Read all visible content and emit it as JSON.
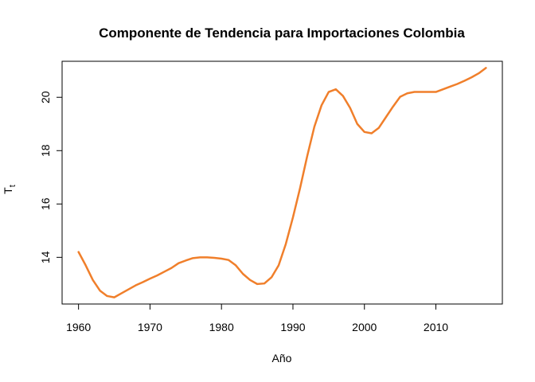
{
  "chart_data": {
    "type": "line",
    "title": "Componente de Tendencia para Importaciones Colombia",
    "xlabel": "Año",
    "ylabel_main": "T",
    "ylabel_sub": "t",
    "xlim": [
      1957.7,
      2019.3
    ],
    "ylim": [
      12.25,
      21.35
    ],
    "x_ticks": [
      1960,
      1970,
      1980,
      1990,
      2000,
      2010
    ],
    "y_ticks": [
      14,
      16,
      18,
      20
    ],
    "grid": false,
    "legend": "none",
    "series": [
      {
        "color": "#F07F2B",
        "x": [
          1960,
          1961,
          1962,
          1963,
          1964,
          1965,
          1966,
          1967,
          1968,
          1969,
          1970,
          1971,
          1972,
          1973,
          1974,
          1975,
          1976,
          1977,
          1978,
          1979,
          1980,
          1981,
          1982,
          1983,
          1984,
          1985,
          1986,
          1987,
          1988,
          1989,
          1990,
          1991,
          1992,
          1993,
          1994,
          1995,
          1996,
          1997,
          1998,
          1999,
          2000,
          2001,
          2002,
          2003,
          2004,
          2005,
          2006,
          2007,
          2008,
          2009,
          2010,
          2011,
          2012,
          2013,
          2014,
          2015,
          2016,
          2017
        ],
        "y": [
          14.2,
          13.7,
          13.15,
          12.75,
          12.55,
          12.5,
          12.65,
          12.8,
          12.95,
          13.07,
          13.2,
          13.32,
          13.46,
          13.6,
          13.78,
          13.88,
          13.97,
          14.0,
          14.0,
          13.98,
          13.95,
          13.9,
          13.7,
          13.38,
          13.15,
          13.0,
          13.02,
          13.25,
          13.7,
          14.5,
          15.5,
          16.6,
          17.8,
          18.9,
          19.7,
          20.2,
          20.3,
          20.05,
          19.6,
          19.0,
          18.7,
          18.65,
          18.85,
          19.25,
          19.65,
          20.02,
          20.15,
          20.2,
          20.2,
          20.2,
          20.2,
          20.3,
          20.4,
          20.5,
          20.62,
          20.75,
          20.9,
          21.1
        ]
      }
    ]
  }
}
